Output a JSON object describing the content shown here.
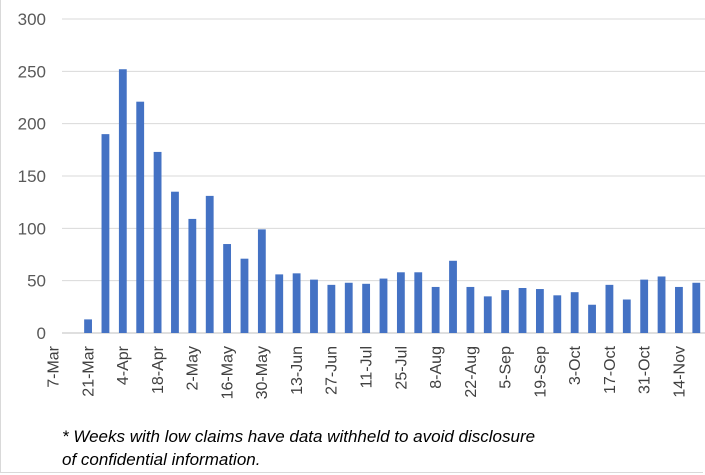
{
  "chart_data": {
    "type": "bar",
    "title": "",
    "xlabel": "",
    "ylabel": "",
    "ylim": [
      0,
      300
    ],
    "yticks": [
      0,
      50,
      100,
      150,
      200,
      250,
      300
    ],
    "grid": true,
    "bar_color": "#4472c4",
    "categories": [
      "7-Mar",
      "14-Mar",
      "21-Mar",
      "28-Mar",
      "4-Apr",
      "11-Apr",
      "18-Apr",
      "25-Apr",
      "2-May",
      "9-May",
      "16-May",
      "23-May",
      "30-May",
      "6-Jun",
      "13-Jun",
      "20-Jun",
      "27-Jun",
      "4-Jul",
      "11-Jul",
      "18-Jul",
      "25-Jul",
      "1-Aug",
      "8-Aug",
      "15-Aug",
      "22-Aug",
      "29-Aug",
      "5-Sep",
      "12-Sep",
      "19-Sep",
      "26-Sep",
      "3-Oct",
      "10-Oct",
      "17-Oct",
      "24-Oct",
      "31-Oct",
      "7-Nov",
      "14-Nov"
    ],
    "x_tick_labels": [
      "7-Mar",
      "21-Mar",
      "4-Apr",
      "18-Apr",
      "2-May",
      "16-May",
      "30-May",
      "13-Jun",
      "27-Jun",
      "11-Jul",
      "25-Jul",
      "8-Aug",
      "22-Aug",
      "5-Sep",
      "19-Sep",
      "3-Oct",
      "17-Oct",
      "31-Oct",
      "14-Nov"
    ],
    "values": [
      null,
      13,
      190,
      252,
      221,
      173,
      135,
      109,
      131,
      85,
      71,
      99,
      56,
      57,
      51,
      46,
      48,
      47,
      52,
      58,
      58,
      44,
      69,
      44,
      35,
      41,
      43,
      42,
      36,
      39,
      27,
      46,
      32,
      51,
      54,
      44,
      48
    ]
  },
  "footnote": {
    "line1": "* Weeks with low claims have data withheld to avoid disclosure",
    "line2": "of confidential information."
  }
}
